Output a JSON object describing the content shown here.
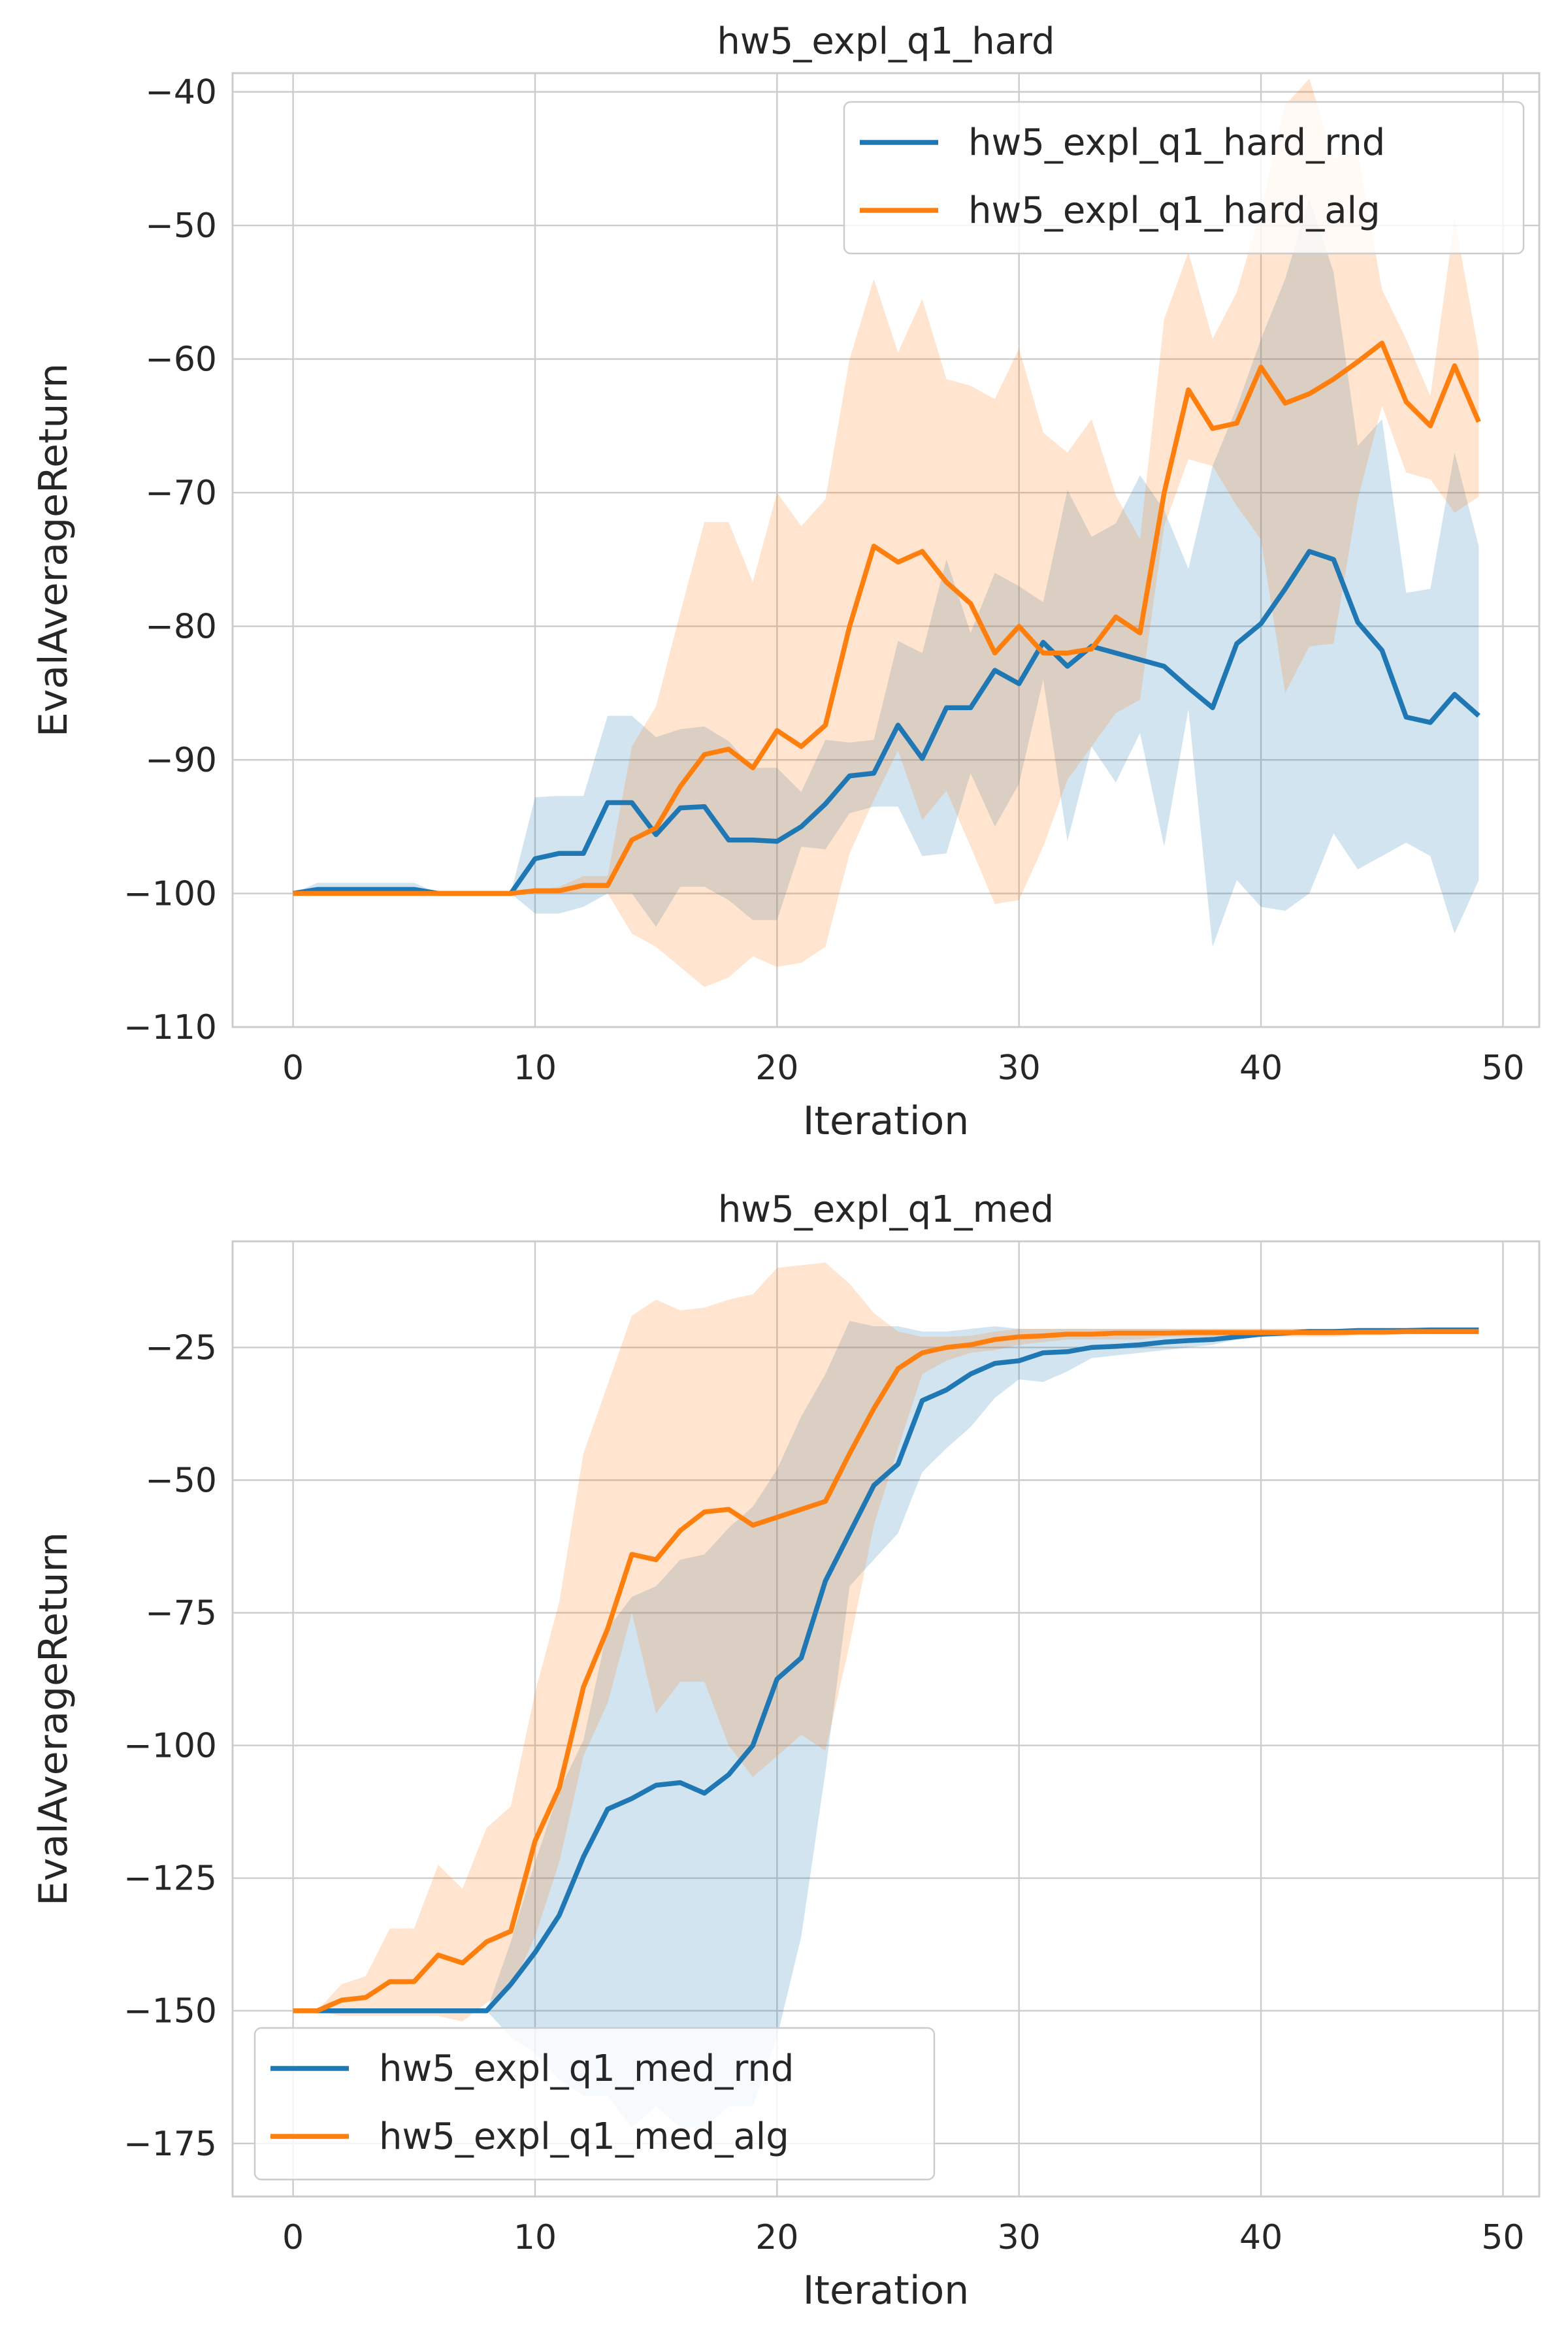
{
  "colors": {
    "rnd": "#1f77b4",
    "alg": "#ff7f0e",
    "grid": "#cccccc",
    "axes": "#cccccc"
  },
  "chart_data": [
    {
      "type": "line",
      "title": "hw5_expl_q1_hard",
      "xlabel": "Iteration",
      "ylabel": "EvalAverageReturn",
      "xlim": [
        -2.5,
        51.5
      ],
      "ylim": [
        -110,
        -38.6
      ],
      "xticks": [
        0,
        10,
        20,
        30,
        40,
        50
      ],
      "xtick_labels": [
        "0",
        "10",
        "20",
        "30",
        "40",
        "50"
      ],
      "yticks": [
        -110,
        -100,
        -90,
        -80,
        -70,
        -60,
        -50,
        -40
      ],
      "ytick_labels": [
        "−110",
        "−100",
        "−90",
        "−80",
        "−70",
        "−60",
        "−50",
        "−40"
      ],
      "grid": true,
      "legend_position": "top-right",
      "x": [
        0,
        1,
        2,
        3,
        4,
        5,
        6,
        7,
        8,
        9,
        10,
        11,
        12,
        13,
        14,
        15,
        16,
        17,
        18,
        19,
        20,
        21,
        22,
        23,
        24,
        25,
        26,
        27,
        28,
        29,
        30,
        31,
        32,
        33,
        34,
        35,
        36,
        37,
        38,
        39,
        40,
        41,
        42,
        43,
        44,
        45,
        46,
        47,
        48,
        49
      ],
      "series": [
        {
          "name": "hw5_expl_q1_hard_rnd",
          "color": "#1f77b4",
          "values": [
            -100,
            -99.7,
            -99.7,
            -99.7,
            -99.7,
            -99.7,
            -100,
            -100,
            -100,
            -100,
            -97.4,
            -97,
            -97,
            -93.2,
            -93.2,
            -95.6,
            -93.6,
            -93.5,
            -96,
            -96,
            -96.1,
            -95,
            -93.3,
            -91.2,
            -91,
            -87.4,
            -89.9,
            -86.1,
            -86.1,
            -83.3,
            -84.3,
            -81.2,
            -83,
            -81.5,
            -82,
            -82.5,
            -83,
            -84.6,
            -86.1,
            -81.3,
            -79.8,
            -77.2,
            -74.4,
            -75,
            -79.7,
            -81.8,
            -86.8,
            -87.2,
            -85.1,
            -86.7
          ],
          "lower": [
            -100,
            -100,
            -100,
            -100,
            -100,
            -100,
            -100,
            -100,
            -100,
            -100,
            -101.5,
            -101.5,
            -101,
            -100,
            -100,
            -102.5,
            -99.5,
            -99.5,
            -100.5,
            -102,
            -102,
            -96.5,
            -96.7,
            -94,
            -93.5,
            -93.5,
            -97.2,
            -97,
            -91,
            -95,
            -91.8,
            -84,
            -96.1,
            -89,
            -91.7,
            -88,
            -96.5,
            -86.2,
            -104,
            -99,
            -101,
            -101.3,
            -100,
            -95.5,
            -98.2,
            -97.2,
            -96.2,
            -97.2,
            -103,
            -99
          ],
          "upper": [
            -100,
            -99.2,
            -99.2,
            -99.2,
            -99.2,
            -99.2,
            -100,
            -100,
            -100,
            -100,
            -92.8,
            -92.7,
            -92.7,
            -86.7,
            -86.7,
            -88.3,
            -87.7,
            -87.5,
            -88.6,
            -90.6,
            -90.6,
            -92.4,
            -88.5,
            -88.7,
            -88.5,
            -81.1,
            -82,
            -75,
            -80.5,
            -76,
            -77,
            -78.2,
            -69.8,
            -73.3,
            -72.3,
            -68.7,
            -71.3,
            -75.7,
            -68,
            -63.6,
            -58.5,
            -54,
            -48,
            -53.5,
            -66.5,
            -64.5,
            -77.5,
            -77.2,
            -67,
            -74
          ]
        },
        {
          "name": "hw5_expl_q1_hard_alg",
          "color": "#ff7f0e",
          "values": [
            -100,
            -100,
            -100,
            -100,
            -100,
            -100,
            -100,
            -100,
            -100,
            -100,
            -99.8,
            -99.8,
            -99.4,
            -99.4,
            -96,
            -95.1,
            -92,
            -89.6,
            -89.2,
            -90.6,
            -87.8,
            -89,
            -87.4,
            -80,
            -74,
            -75.2,
            -74.4,
            -76.7,
            -78.3,
            -82,
            -80,
            -82,
            -82,
            -81.7,
            -79.3,
            -80.5,
            -70,
            -62.3,
            -65.2,
            -64.8,
            -60.6,
            -63.3,
            -62.6,
            -61.5,
            -60.2,
            -58.8,
            -63.2,
            -65,
            -60.5,
            -64.7
          ],
          "lower": [
            -100,
            -100,
            -100,
            -100,
            -100,
            -100,
            -100,
            -100,
            -100,
            -100,
            -100,
            -100,
            -100,
            -100,
            -103,
            -104,
            -105.5,
            -107,
            -106.3,
            -104.7,
            -105.5,
            -105.2,
            -104,
            -97,
            -93,
            -89.3,
            -94.5,
            -92.3,
            -96.5,
            -100.8,
            -100.5,
            -96.5,
            -91.5,
            -89,
            -86.5,
            -85.5,
            -72.5,
            -67.5,
            -68,
            -71,
            -73.5,
            -85,
            -81.5,
            -81.3,
            -70.5,
            -63.5,
            -68.5,
            -69,
            -71.5,
            -70.3
          ],
          "upper": [
            -100,
            -100,
            -100,
            -100,
            -100,
            -100,
            -100,
            -100,
            -100,
            -100,
            -99.8,
            -99.5,
            -98.7,
            -98.7,
            -89,
            -86,
            -79,
            -72.2,
            -72.2,
            -76.7,
            -70,
            -72.5,
            -70.5,
            -60,
            -54,
            -59.5,
            -55.5,
            -61.5,
            -62,
            -63,
            -59.2,
            -65.5,
            -67,
            -64.5,
            -70.2,
            -73.5,
            -57,
            -52,
            -58.5,
            -55,
            -48.8,
            -41,
            -39,
            -45,
            -44.5,
            -54.8,
            -58.5,
            -62.8,
            -49.5,
            -59.5
          ]
        }
      ]
    },
    {
      "type": "line",
      "title": "hw5_expl_q1_med",
      "xlabel": "Iteration",
      "ylabel": "EvalAverageReturn",
      "xlim": [
        -2.5,
        51.5
      ],
      "ylim": [
        -185,
        -5
      ],
      "xticks": [
        0,
        10,
        20,
        30,
        40,
        50
      ],
      "xtick_labels": [
        "0",
        "10",
        "20",
        "30",
        "40",
        "50"
      ],
      "yticks": [
        -175,
        -150,
        -125,
        -100,
        -75,
        -50,
        -25
      ],
      "ytick_labels": [
        "−175",
        "−150",
        "−125",
        "−100",
        "−75",
        "−50",
        "−25"
      ],
      "grid": true,
      "legend_position": "bottom-left",
      "x": [
        0,
        1,
        2,
        3,
        4,
        5,
        6,
        7,
        8,
        9,
        10,
        11,
        12,
        13,
        14,
        15,
        16,
        17,
        18,
        19,
        20,
        21,
        22,
        23,
        24,
        25,
        26,
        27,
        28,
        29,
        30,
        31,
        32,
        33,
        34,
        35,
        36,
        37,
        38,
        39,
        40,
        41,
        42,
        43,
        44,
        45,
        46,
        47,
        48,
        49
      ],
      "series": [
        {
          "name": "hw5_expl_q1_med_rnd",
          "color": "#1f77b4",
          "values": [
            -150,
            -150,
            -150,
            -150,
            -150,
            -150,
            -150,
            -150,
            -150,
            -145,
            -139,
            -132,
            -121,
            -112,
            -110,
            -107.5,
            -107,
            -109,
            -105.5,
            -100,
            -87.5,
            -83.5,
            -69,
            -60,
            -51,
            -47,
            -35,
            -33,
            -30,
            -28,
            -27.5,
            -26,
            -25.8,
            -25,
            -24.8,
            -24.5,
            -24,
            -23.7,
            -23.5,
            -23,
            -22.5,
            -22.3,
            -22,
            -22,
            -21.8,
            -21.8,
            -21.8,
            -21.7,
            -21.7,
            -21.7
          ],
          "lower": [
            -150,
            -150,
            -150,
            -150,
            -150,
            -150,
            -150,
            -150,
            -150,
            -155,
            -158,
            -163,
            -166,
            -166,
            -172,
            -168,
            -172,
            -172,
            -168,
            -168,
            -155,
            -136,
            -105,
            -70,
            -65,
            -60,
            -48.5,
            -44,
            -40,
            -34.5,
            -31,
            -31.5,
            -29.5,
            -27,
            -26.5,
            -26,
            -25.5,
            -25,
            -24.5,
            -23.5,
            -23,
            -22.5,
            -22.3,
            -22.3,
            -22,
            -22,
            -22,
            -22,
            -22,
            -22
          ],
          "upper": [
            -150,
            -150,
            -150,
            -150,
            -150,
            -150,
            -150,
            -150,
            -150,
            -137,
            -122,
            -108.5,
            -99,
            -78,
            -72,
            -70,
            -65,
            -64,
            -59,
            -55,
            -48,
            -38,
            -30,
            -20,
            -21,
            -21,
            -22,
            -22,
            -21.5,
            -21,
            -21.5,
            -21.5,
            -21.5,
            -21.5,
            -21.5,
            -21.5,
            -21.5,
            -21.5,
            -21.5,
            -21.5,
            -21.5,
            -21.5,
            -21.5,
            -21.5,
            -21.5,
            -21.5,
            -21.5,
            -21.5,
            -21.5,
            -21.5
          ]
        },
        {
          "name": "hw5_expl_q1_med_alg",
          "color": "#ff7f0e",
          "values": [
            -150,
            -150,
            -148,
            -147.5,
            -144.5,
            -144.5,
            -139.5,
            -141,
            -137,
            -135,
            -118,
            -108,
            -89,
            -78,
            -64,
            -65,
            -59.5,
            -56,
            -55.5,
            -58.5,
            -57,
            -55.5,
            -54,
            -45,
            -36.5,
            -29,
            -26,
            -25,
            -24.5,
            -23.5,
            -23,
            -22.8,
            -22.5,
            -22.5,
            -22.3,
            -22.3,
            -22.3,
            -22.2,
            -22.2,
            -22.2,
            -22.2,
            -22.2,
            -22.2,
            -22.2,
            -22.1,
            -22.1,
            -22,
            -22,
            -22,
            -22
          ],
          "lower": [
            -150,
            -150,
            -151,
            -151,
            -151,
            -151,
            -151,
            -152,
            -148.5,
            -146,
            -136,
            -122,
            -102,
            -92,
            -75,
            -94,
            -88,
            -88,
            -100,
            -106,
            -102,
            -98,
            -101,
            -81,
            -58.5,
            -44,
            -30,
            -27.5,
            -26,
            -25.5,
            -24.5,
            -24,
            -23.5,
            -23.5,
            -23.5,
            -23.5,
            -23,
            -23,
            -23,
            -23,
            -23,
            -23,
            -23,
            -23,
            -22.7,
            -22.7,
            -22.5,
            -22.5,
            -22.5,
            -22.5
          ],
          "upper": [
            -150,
            -150,
            -145,
            -143.5,
            -134.5,
            -134.5,
            -122.5,
            -127,
            -115.5,
            -111.5,
            -90,
            -73,
            -45,
            -32,
            -19,
            -16,
            -18,
            -17.5,
            -16,
            -15,
            -10,
            -9.5,
            -9,
            -13,
            -18.5,
            -22,
            -23,
            -23,
            -22.8,
            -22,
            -21.5,
            -21.5,
            -21.5,
            -21.5,
            -21.5,
            -21.5,
            -21.5,
            -21.5,
            -21.5,
            -21.5,
            -21.5,
            -21.5,
            -21.5,
            -21.5,
            -21.5,
            -21.5,
            -21.5,
            -21.5,
            -21.5,
            -21.5
          ]
        }
      ]
    }
  ]
}
